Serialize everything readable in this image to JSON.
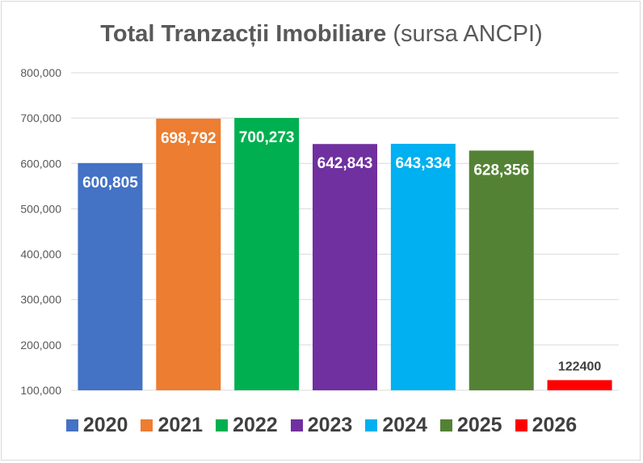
{
  "chart_data": {
    "type": "bar",
    "title": "Total Tranzacții Imobiliare",
    "subtitle": "(sursa ANCPI)",
    "categories": [
      "2020",
      "2021",
      "2022",
      "2023",
      "2024",
      "2025",
      "2026"
    ],
    "values": [
      600805,
      698792,
      700273,
      642843,
      643334,
      628356,
      122400
    ],
    "data_labels": [
      "600,805",
      "698,792",
      "700,273",
      "642,843",
      "643,334",
      "628,356",
      "122400"
    ],
    "colors": [
      "#4472C4",
      "#ED7D31",
      "#00B050",
      "#7030A0",
      "#00B0F0",
      "#548235",
      "#FF0000"
    ],
    "ylim": [
      100000,
      800000
    ],
    "yticks": [
      100000,
      200000,
      300000,
      400000,
      500000,
      600000,
      700000,
      800000
    ],
    "ytick_labels": [
      "100,000",
      "200,000",
      "300,000",
      "400,000",
      "500,000",
      "600,000",
      "700,000",
      "800,000"
    ],
    "xlabel": "",
    "ylabel": "",
    "grid": true,
    "legend": "bottom"
  }
}
